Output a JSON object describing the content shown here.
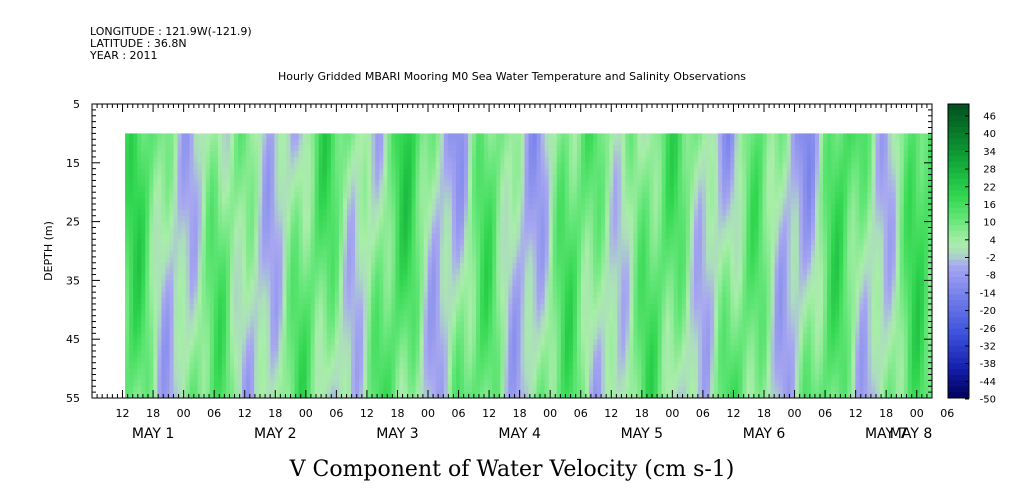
{
  "header": {
    "longitude": "LONGITUDE : 121.9W(-121.9)",
    "latitude": "LATITUDE : 36.8N",
    "year": "YEAR : 2011"
  },
  "chart_data": {
    "type": "heatmap",
    "title": "Hourly Gridded MBARI Mooring M0 Sea Water Temperature and Salinity Observations",
    "xlabel": "V Component of Water Velocity (cm s-1)",
    "ylabel": "DEPTH (m)",
    "ylim": [
      55,
      5
    ],
    "y_ticks": [
      5,
      15,
      25,
      35,
      45,
      55
    ],
    "y_data_range": [
      10,
      55
    ],
    "x_range_hours": [
      0,
      165
    ],
    "x_tick_hour_labels": [
      "12",
      "18",
      "00",
      "06",
      "12",
      "18",
      "00",
      "06",
      "12",
      "18",
      "00",
      "06",
      "12",
      "18",
      "00",
      "06",
      "12",
      "18",
      "00",
      "06",
      "12",
      "18",
      "00",
      "06",
      "12",
      "18",
      "00",
      "06"
    ],
    "x_day_labels": [
      "MAY 1",
      "MAY 2",
      "MAY 3",
      "MAY 4",
      "MAY 5",
      "MAY 6",
      "MAY 7",
      "MAY 8"
    ],
    "colorbar": {
      "labels": [
        "46",
        "40",
        "34",
        "28",
        "22",
        "16",
        "10",
        "4",
        "-2",
        "-8",
        "-14",
        "-20",
        "-26",
        "-32",
        "-38",
        "-44",
        "-50"
      ],
      "range": [
        -50,
        52
      ]
    },
    "colors": {
      "negative_light": "#a8a8f0",
      "positive_light": "#a8eea8",
      "positive_mid": "#40dd60"
    }
  }
}
